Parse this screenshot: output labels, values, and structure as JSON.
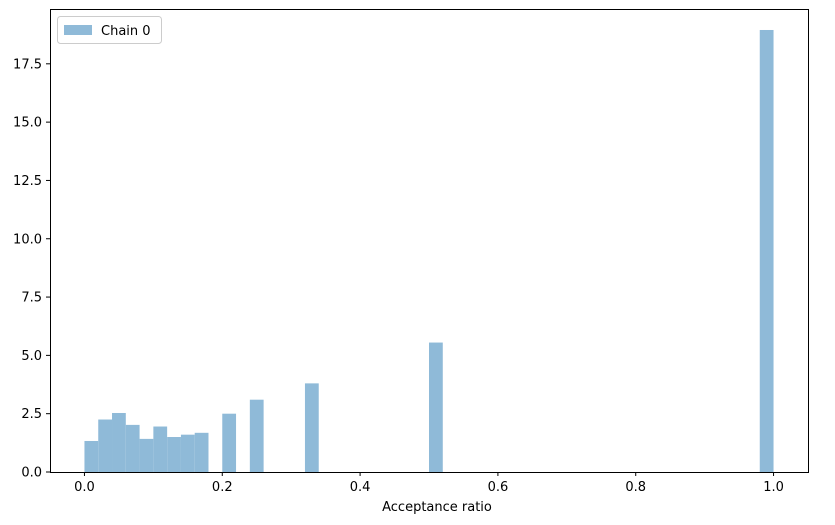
{
  "chart_data": {
    "type": "bar",
    "xlabel": "Acceptance ratio",
    "ylabel": "",
    "xlim": [
      -0.05,
      1.05
    ],
    "ylim": [
      0,
      19.85
    ],
    "xticks": [
      0.0,
      0.2,
      0.4,
      0.6,
      0.8,
      1.0
    ],
    "xtick_labels": [
      "0.0",
      "0.2",
      "0.4",
      "0.6",
      "0.8",
      "1.0"
    ],
    "yticks": [
      0.0,
      2.5,
      5.0,
      7.5,
      10.0,
      12.5,
      15.0,
      17.5
    ],
    "ytick_labels": [
      "0.0",
      "2.5",
      "5.0",
      "7.5",
      "10.0",
      "12.5",
      "15.0",
      "17.5"
    ],
    "grid": false,
    "legend_position": "top-left",
    "bin_width": 0.02,
    "series": [
      {
        "name": "Chain 0",
        "color": "#8fbad8",
        "bins": [
          {
            "x0": 0.0,
            "value": 1.33
          },
          {
            "x0": 0.02,
            "value": 2.25
          },
          {
            "x0": 0.04,
            "value": 2.53
          },
          {
            "x0": 0.06,
            "value": 2.02
          },
          {
            "x0": 0.08,
            "value": 1.42
          },
          {
            "x0": 0.1,
            "value": 1.95
          },
          {
            "x0": 0.12,
            "value": 1.5
          },
          {
            "x0": 0.14,
            "value": 1.6
          },
          {
            "x0": 0.16,
            "value": 1.68
          },
          {
            "x0": 0.2,
            "value": 2.5
          },
          {
            "x0": 0.24,
            "value": 3.1
          },
          {
            "x0": 0.32,
            "value": 3.8
          },
          {
            "x0": 0.5,
            "value": 5.55
          },
          {
            "x0": 0.98,
            "value": 18.95
          }
        ]
      }
    ]
  }
}
